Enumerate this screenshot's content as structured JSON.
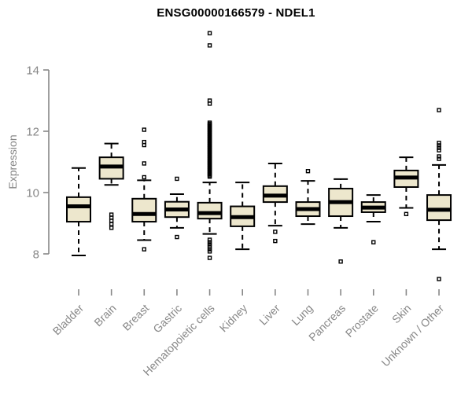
{
  "chart_data": {
    "type": "boxplot",
    "title": "ENSG00000166579 - NDEL1",
    "ylabel": "Expression",
    "xlabel": "",
    "y_ticks": [
      8,
      10,
      12,
      14
    ],
    "ylim": [
      7.0,
      15.4
    ],
    "grid": false,
    "legend": "none",
    "categories": [
      "Bladder",
      "Brain",
      "Breast",
      "Gastric",
      "Hematopoietic cells",
      "Kidney",
      "Liver",
      "Lung",
      "Pancreas",
      "Prostate",
      "Skin",
      "Unknown / Other"
    ],
    "boxes": [
      {
        "category": "Bladder",
        "whisker_low": 7.95,
        "q1": 9.05,
        "median": 9.55,
        "q3": 9.85,
        "whisker_high": 10.8,
        "outliers": []
      },
      {
        "category": "Brain",
        "whisker_low": 10.25,
        "q1": 10.45,
        "median": 10.85,
        "q3": 11.15,
        "whisker_high": 11.6,
        "outliers": [
          9.28,
          9.18,
          9.08,
          8.97,
          8.85
        ]
      },
      {
        "category": "Breast",
        "whisker_low": 8.45,
        "q1": 9.05,
        "median": 9.3,
        "q3": 9.8,
        "whisker_high": 10.4,
        "outliers": [
          12.05,
          11.65,
          11.55,
          10.95,
          10.5,
          8.15
        ]
      },
      {
        "category": "Gastric",
        "whisker_low": 8.85,
        "q1": 9.2,
        "median": 9.45,
        "q3": 9.7,
        "whisker_high": 9.95,
        "outliers": [
          10.45,
          8.55
        ]
      },
      {
        "category": "Hematopoietic cells",
        "whisker_low": 8.65,
        "q1": 9.15,
        "median": 9.33,
        "q3": 9.67,
        "whisker_high": 10.33,
        "outliers": [
          15.2,
          14.8,
          13.0,
          12.9,
          12.28,
          12.24,
          12.2,
          12.16,
          12.12,
          12.08,
          12.04,
          12.0,
          11.96,
          11.92,
          11.88,
          11.84,
          11.8,
          11.76,
          11.72,
          11.68,
          11.64,
          11.6,
          11.56,
          11.52,
          11.48,
          11.44,
          11.4,
          11.36,
          11.32,
          11.28,
          11.24,
          11.2,
          11.16,
          11.12,
          11.08,
          11.04,
          11.0,
          10.96,
          10.92,
          10.88,
          10.84,
          10.8,
          10.76,
          10.72,
          10.68,
          10.64,
          10.6,
          10.56,
          10.52,
          8.46,
          8.38,
          8.31,
          8.23,
          8.15,
          8.08,
          7.87
        ]
      },
      {
        "category": "Kidney",
        "whisker_low": 8.15,
        "q1": 8.9,
        "median": 9.2,
        "q3": 9.55,
        "whisker_high": 10.33,
        "outliers": []
      },
      {
        "category": "Liver",
        "whisker_low": 8.92,
        "q1": 9.69,
        "median": 9.9,
        "q3": 10.21,
        "whisker_high": 10.95,
        "outliers": [
          8.72,
          8.42
        ]
      },
      {
        "category": "Lung",
        "whisker_low": 8.97,
        "q1": 9.23,
        "median": 9.46,
        "q3": 9.69,
        "whisker_high": 10.38,
        "outliers": [
          10.7
        ]
      },
      {
        "category": "Pancreas",
        "whisker_low": 8.85,
        "q1": 9.23,
        "median": 9.69,
        "q3": 10.13,
        "whisker_high": 10.44,
        "outliers": [
          7.75
        ]
      },
      {
        "category": "Prostate",
        "whisker_low": 9.05,
        "q1": 9.36,
        "median": 9.51,
        "q3": 9.69,
        "whisker_high": 9.92,
        "outliers": [
          8.38
        ]
      },
      {
        "category": "Skin",
        "whisker_low": 9.5,
        "q1": 10.18,
        "median": 10.49,
        "q3": 10.72,
        "whisker_high": 11.15,
        "outliers": [
          9.3
        ]
      },
      {
        "category": "Unknown / Other",
        "whisker_low": 8.15,
        "q1": 9.1,
        "median": 9.44,
        "q3": 9.92,
        "whisker_high": 10.9,
        "outliers": [
          12.69,
          11.62,
          11.54,
          11.46,
          11.38,
          11.18,
          11.1,
          7.18
        ]
      }
    ],
    "colors": {
      "box_fill": "#EDE7CD",
      "box_border": "#000000",
      "median": "#000000",
      "whisker": "#000000",
      "axis": "#878787",
      "title": "#000000",
      "background": "#ffffff"
    }
  }
}
